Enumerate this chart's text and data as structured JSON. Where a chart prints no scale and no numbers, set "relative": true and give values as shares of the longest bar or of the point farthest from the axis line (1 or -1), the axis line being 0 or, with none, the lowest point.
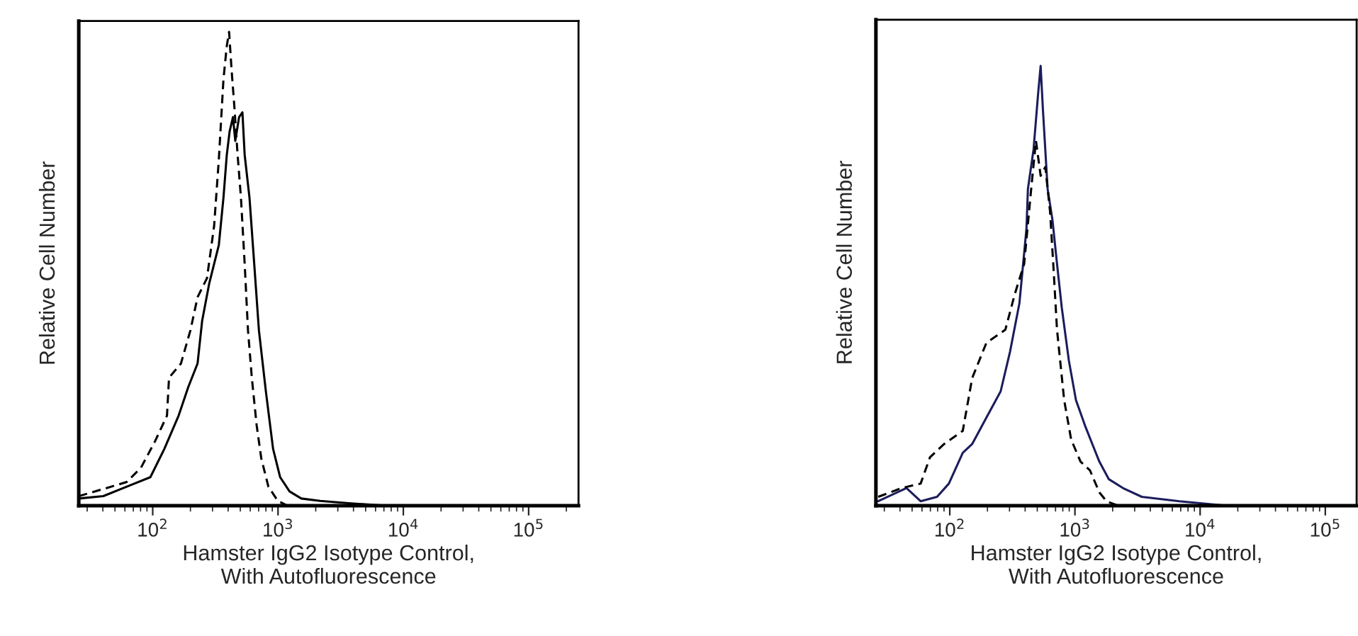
{
  "chart_data": [
    {
      "type": "line",
      "relative": true,
      "log": "x",
      "xlabel": "Hamster IgG2 Isotype Control,\nWith Autofluorescence",
      "ylabel": "Relative Cell Number",
      "xlim": [
        25.7,
        250000
      ],
      "xticks": [
        {
          "value": 100,
          "label": "10$^{2}$"
        },
        {
          "value": 1000,
          "label": "10$^{3}$"
        },
        {
          "value": 10000,
          "label": "10$^{4}$"
        },
        {
          "value": 100000,
          "label": "10$^{5}$"
        }
      ],
      "series": [
        {
          "color": "#000000",
          "line_style": "dashed",
          "x": [
            25.7,
            40.3,
            62.1,
            80.6,
            104,
            130,
            135,
            168,
            200,
            228,
            271,
            309,
            337,
            367,
            390,
            407,
            426,
            449,
            476,
            506,
            542,
            576,
            618,
            675,
            735,
            838,
            996,
            1184
          ],
          "values": [
            0.02,
            0.035,
            0.05,
            0.08,
            0.135,
            0.19,
            0.27,
            0.3,
            0.37,
            0.44,
            0.48,
            0.59,
            0.73,
            0.9,
            0.97,
            1,
            0.92,
            0.84,
            0.74,
            0.65,
            0.51,
            0.37,
            0.27,
            0.17,
            0.1,
            0.04,
            0.01,
            0
          ]
        },
        {
          "color": "#000000",
          "line_style": "solid",
          "x": [
            25.7,
            40.3,
            62.1,
            95.8,
            124,
            161,
            192,
            228,
            248,
            283,
            337,
            367,
            390,
            411,
            437,
            456,
            489,
            520,
            542,
            592,
            646,
            704,
            801,
            913,
            1040,
            1236,
            1535,
            2170,
            3655,
            7310,
            8710
          ],
          "values": [
            0.015,
            0.02,
            0.04,
            0.06,
            0.12,
            0.19,
            0.25,
            0.3,
            0.39,
            0.47,
            0.55,
            0.65,
            0.74,
            0.79,
            0.82,
            0.77,
            0.82,
            0.83,
            0.74,
            0.65,
            0.51,
            0.37,
            0.24,
            0.12,
            0.06,
            0.03,
            0.015,
            0.01,
            0.005,
            0,
            0
          ]
        }
      ]
    },
    {
      "type": "line",
      "relative": true,
      "log": "x",
      "xlabel": "Hamster IgG2 Isotype Control,\nWith Autofluorescence",
      "ylabel": "Relative Cell Number",
      "xlim": [
        25.7,
        178000
      ],
      "xticks": [
        {
          "value": 100,
          "label": "10$^{2}$"
        },
        {
          "value": 1000,
          "label": "10$^{3}$"
        },
        {
          "value": 10000,
          "label": "10$^{4}$"
        },
        {
          "value": 100000,
          "label": "10$^{5}$"
        }
      ],
      "series": [
        {
          "color": "#1c1c5c",
          "line_style": "solid",
          "x": [
            26.8,
            45.1,
            58.5,
            79.1,
            98.3,
            127,
            151,
            196,
            255,
            303,
            360,
            410,
            421,
            467,
            509,
            532,
            555,
            605,
            661,
            719,
            785,
            894,
            1019,
            1211,
            1377,
            1567,
            1866,
            2415,
            3420,
            6840,
            16260
          ],
          "values": [
            0.01,
            0.04,
            0.01,
            0.02,
            0.05,
            0.12,
            0.14,
            0.2,
            0.26,
            0.35,
            0.46,
            0.63,
            0.72,
            0.81,
            0.94,
            1,
            0.9,
            0.72,
            0.65,
            0.55,
            0.45,
            0.33,
            0.24,
            0.18,
            0.14,
            0.1,
            0.06,
            0.04,
            0.02,
            0.01,
            0
          ]
        },
        {
          "color": "#000000",
          "line_style": "dashed",
          "x": [
            26.8,
            41.4,
            58.5,
            69.5,
            90.1,
            127,
            151,
            196,
            278,
            330,
            393,
            447,
            488,
            532,
            580,
            632,
            671,
            719,
            820,
            933,
            1109,
            1319,
            1567,
            1786,
            2218
          ],
          "values": [
            0.02,
            0.04,
            0.05,
            0.11,
            0.14,
            0.17,
            0.29,
            0.37,
            0.4,
            0.48,
            0.55,
            0.72,
            0.83,
            0.75,
            0.77,
            0.67,
            0.55,
            0.4,
            0.24,
            0.15,
            0.1,
            0.08,
            0.03,
            0.01,
            0
          ]
        }
      ]
    }
  ]
}
